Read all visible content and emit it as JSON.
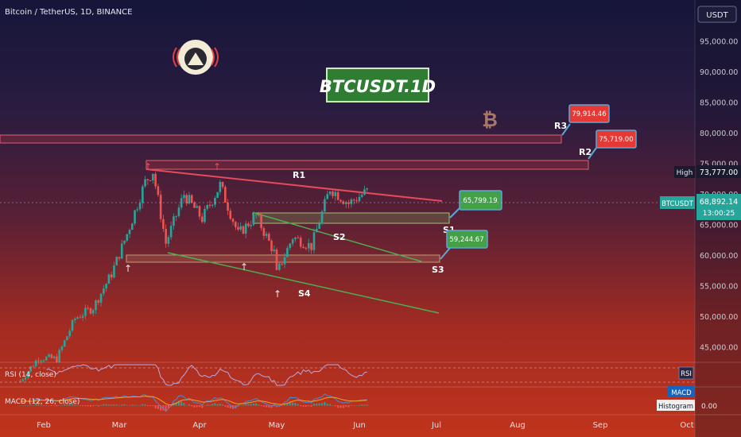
{
  "header": {
    "symbol_line": "Bitcoin / TetherUS, 1D, BINANCE",
    "currency": "USDT"
  },
  "badges": {
    "title": "BTCUSDT.1D",
    "symbol": "BTCUSDT",
    "high_label": "High",
    "high_value": "73,777.00",
    "last_price": "68,892.14",
    "countdown": "13:00:25"
  },
  "icons": {
    "logo": "astronaut-logo-icon",
    "bitcoin": "bitcoin-icon"
  },
  "colors": {
    "resistance": "#e84a5a",
    "support": "#4caf50",
    "up_candle": "#26a69a",
    "down_candle": "#ef5350",
    "axis_text": "#c8c8d0"
  },
  "price_axis": {
    "ticks": [
      "95,000.00",
      "90,000.00",
      "85,000.00",
      "80,000.00",
      "75,000.00",
      "70,000.00",
      "65,000.00",
      "60,000.00",
      "55,000.00",
      "50,000.00",
      "45,000.00"
    ]
  },
  "time_axis": {
    "ticks": [
      "Feb",
      "Mar",
      "Apr",
      "May",
      "Jun",
      "Jul",
      "Aug",
      "Sep",
      "Oct"
    ]
  },
  "levels": {
    "R1": "R1",
    "R2": "R2",
    "R3": "R3",
    "S1": "S1",
    "S2": "S2",
    "S3": "S3",
    "S4": "S4",
    "r3_price": "79,914.46",
    "r2_price": "75,719.00",
    "s1_price": "65,799.19",
    "s3_price": "59,244.67"
  },
  "indicators": {
    "rsi_label": "RSI (14, close)",
    "rsi_badge": "RSI",
    "macd_label": "MACD (12, 26, close)",
    "macd_badge": "MACD",
    "histogram_badge": "Histogram",
    "histogram_value": "0.00"
  },
  "chart_data": {
    "type": "candlestick",
    "series_name": "Bitcoin / TetherUS, 1D, BINANCE",
    "ylim": [
      42000,
      99000
    ],
    "xlim_label": [
      "Jan",
      "Oct"
    ],
    "close_path": [
      [
        "2024-01-23",
        39500
      ],
      [
        "2024-01-30",
        43300
      ],
      [
        "2024-02-06",
        43100
      ],
      [
        "2024-02-13",
        49700
      ],
      [
        "2024-02-20",
        51500
      ],
      [
        "2024-02-27",
        57000
      ],
      [
        "2024-03-04",
        63500
      ],
      [
        "2024-03-11",
        72000
      ],
      [
        "2024-03-14",
        73777
      ],
      [
        "2024-03-19",
        62000
      ],
      [
        "2024-03-26",
        70000
      ],
      [
        "2024-04-02",
        66000
      ],
      [
        "2024-04-09",
        71500
      ],
      [
        "2024-04-16",
        63500
      ],
      [
        "2024-04-23",
        66500
      ],
      [
        "2024-04-30",
        60500
      ],
      [
        "2024-05-01",
        57000
      ],
      [
        "2024-05-07",
        63000
      ],
      [
        "2024-05-14",
        61500
      ],
      [
        "2024-05-21",
        71000
      ],
      [
        "2024-05-28",
        68500
      ],
      [
        "2024-06-04",
        70500
      ]
    ],
    "zones": [
      {
        "name": "R3",
        "price": 79914.46
      },
      {
        "name": "R2",
        "price": 75719.0
      },
      {
        "name": "S1",
        "price": 65799.19
      },
      {
        "name": "S3",
        "price": 59244.67
      }
    ],
    "last_price": 68892.14,
    "high": 73777.0
  }
}
